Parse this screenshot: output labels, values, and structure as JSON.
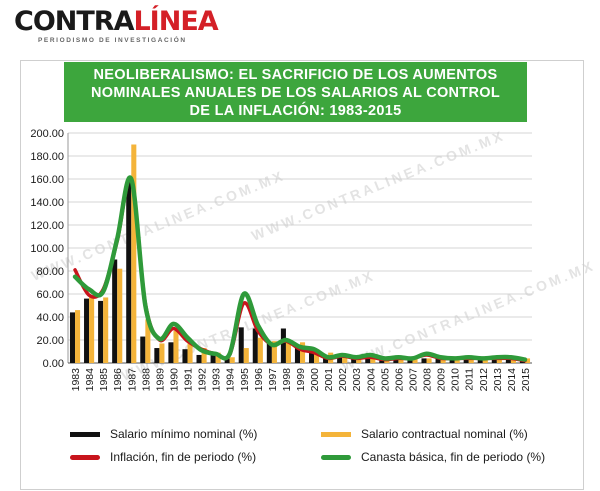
{
  "logo": {
    "dark_part": "CONTRA",
    "red_part": "LÍNEA",
    "tagline": "PERIODISMO DE INVESTIGACIÓN"
  },
  "watermark": "WWW.CONTRALINEA.COM.MX",
  "colors": {
    "title_bg": "#3da63d",
    "salario_minimo": "#111111",
    "salario_contractual": "#f4b43a",
    "inflacion": "#c8141c",
    "canasta": "#2f9a3a"
  },
  "chart_data": {
    "type": "bar",
    "title": "NEOLIBERALISMO: EL SACRIFICIO DE LOS AUMENTOS\nNOMINALES ANUALES DE LOS SALARIOS AL CONTROL\nDE LA INFLACIÓN: 1983-2015",
    "categories": [
      "1983",
      "1984",
      "1985",
      "1986",
      "1987",
      "1988",
      "1989",
      "1990",
      "1991",
      "1992",
      "1993",
      "1994",
      "1995",
      "1996",
      "1997",
      "1998",
      "1999",
      "2000",
      "2001",
      "2002",
      "2003",
      "2004",
      "2005",
      "2006",
      "2007",
      "2008",
      "2009",
      "2010",
      "2011",
      "2012",
      "2013",
      "2014",
      "2015"
    ],
    "ylim": [
      0,
      200
    ],
    "yticks": [
      "0.00",
      "20.00",
      "40.00",
      "60.00",
      "80.00",
      "100.00",
      "120.00",
      "140.00",
      "160.00",
      "180.00",
      "200.00"
    ],
    "grid": true,
    "legend_position": "bottom",
    "series": [
      {
        "name": "Salario mínimo nominal (%)",
        "type": "bar",
        "values": [
          44,
          56,
          54,
          90,
          159,
          23,
          13,
          18,
          12,
          7,
          7,
          4,
          31,
          30,
          17,
          30,
          14,
          10,
          7,
          5,
          4,
          4,
          4,
          4,
          4,
          4,
          4,
          5,
          4,
          4,
          4,
          4,
          4
        ]
      },
      {
        "name": "Salario contractual nominal (%)",
        "type": "bar",
        "values": [
          46,
          58,
          57,
          82,
          190,
          38,
          17,
          28,
          20,
          13,
          9,
          5,
          13,
          22,
          19,
          19,
          18,
          12,
          9,
          6,
          4,
          4,
          4,
          4,
          4,
          4,
          4,
          4,
          4,
          4,
          4,
          4,
          4
        ]
      },
      {
        "name": "Inflación, fin de periodo (%)",
        "type": "line",
        "values": [
          81,
          59,
          64,
          106,
          159,
          52,
          20,
          30,
          19,
          12,
          8,
          7,
          52,
          28,
          16,
          19,
          12,
          9,
          4,
          6,
          4,
          5,
          3,
          4,
          4,
          7,
          4,
          4,
          4,
          4,
          4,
          4,
          2
        ]
      },
      {
        "name": "Canasta básica, fin de periodo (%)",
        "type": "line",
        "values": [
          75,
          64,
          62,
          108,
          160,
          50,
          21,
          34,
          22,
          11,
          8,
          8,
          60,
          33,
          16,
          20,
          14,
          12,
          5,
          7,
          5,
          7,
          4,
          5,
          4,
          8,
          5,
          4,
          5,
          4,
          5,
          5,
          3
        ]
      }
    ]
  }
}
